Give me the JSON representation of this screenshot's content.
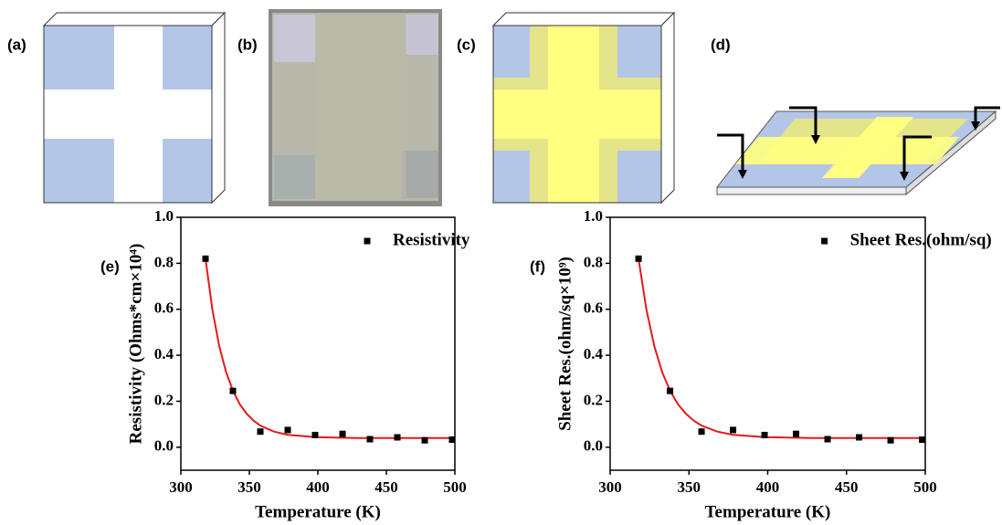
{
  "panel_labels": [
    "(a)",
    "(b)",
    "(c)",
    "(d)"
  ],
  "chart_data": [
    {
      "type": "scatter",
      "panel_label": "(e)",
      "x_label": "Temperature (K)",
      "y_label": "Resistivity (Ohms*cm×10⁴)",
      "x": [
        318,
        338,
        358,
        378,
        398,
        418,
        438,
        458,
        478,
        498
      ],
      "series": [
        {
          "name": "Resistivity",
          "color": "#000000",
          "values": [
            0.82,
            0.245,
            0.068,
            0.075,
            0.053,
            0.058,
            0.035,
            0.043,
            0.03,
            0.033
          ]
        }
      ],
      "fit": {
        "color": "#e41a1c",
        "x": [
          318,
          323,
          328,
          333,
          338,
          343,
          348,
          353,
          358,
          368,
          378,
          398,
          428,
          460,
          500
        ],
        "values": [
          0.82,
          0.599,
          0.44,
          0.327,
          0.246,
          0.187,
          0.146,
          0.116,
          0.094,
          0.068,
          0.054,
          0.044,
          0.04,
          0.04,
          0.04
        ]
      },
      "xlim": [
        300,
        500
      ],
      "xticks": [
        300,
        350,
        400,
        450,
        500
      ],
      "ylim": [
        -0.1,
        1.0
      ],
      "yticks": [
        {
          "value": 0,
          "label": "0.0"
        },
        0.2,
        0.4,
        0.6,
        0.8,
        {
          "value": 1,
          "label": "1.0"
        }
      ],
      "legend": "upper right"
    },
    {
      "type": "scatter",
      "panel_label": "(f)",
      "x_label": "Temperature (K)",
      "y_label": "Sheet Res.(ohm/sq×10⁹)",
      "x": [
        318,
        338,
        358,
        378,
        398,
        418,
        438,
        458,
        478,
        498
      ],
      "series": [
        {
          "name": "Sheet Res.(ohm/sq)",
          "color": "#000000",
          "values": [
            0.82,
            0.245,
            0.068,
            0.075,
            0.053,
            0.058,
            0.035,
            0.043,
            0.03,
            0.033
          ]
        }
      ],
      "fit": {
        "color": "#e41a1c",
        "x": [
          318,
          323,
          328,
          333,
          338,
          343,
          348,
          353,
          358,
          368,
          378,
          398,
          428,
          460,
          500
        ],
        "values": [
          0.82,
          0.599,
          0.44,
          0.327,
          0.246,
          0.187,
          0.146,
          0.116,
          0.094,
          0.068,
          0.054,
          0.044,
          0.04,
          0.04,
          0.04
        ]
      },
      "xlim": [
        300,
        500
      ],
      "xticks": [
        300,
        350,
        400,
        450,
        500
      ],
      "ylim": [
        -0.1,
        1.0
      ],
      "yticks": [
        {
          "value": 0,
          "label": "0.0"
        },
        0.2,
        0.4,
        0.6,
        0.8,
        {
          "value": 1,
          "label": "1.0"
        }
      ],
      "legend": "upper right"
    }
  ]
}
